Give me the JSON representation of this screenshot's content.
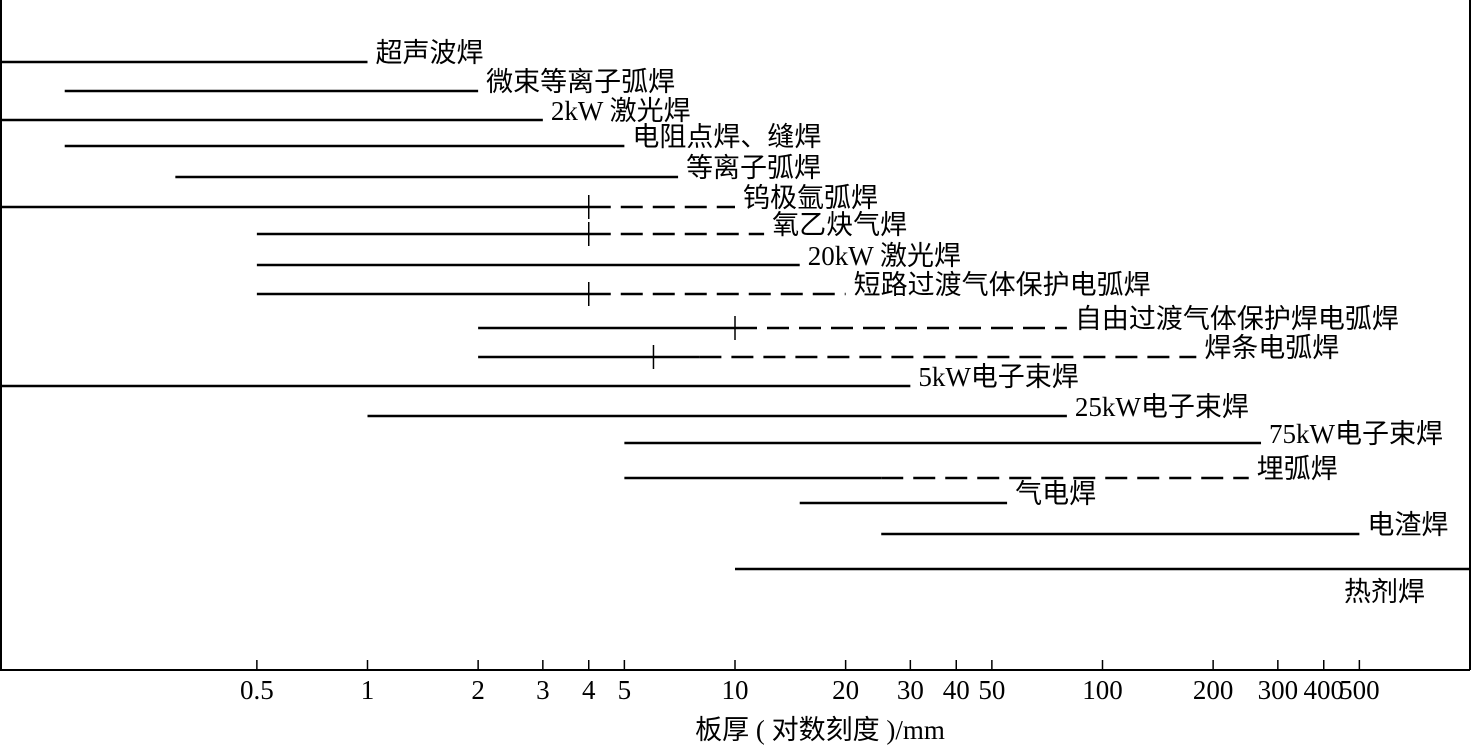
{
  "chart_data": {
    "type": "range",
    "x_label": "板厚 ( 对数刻度 )/mm",
    "xscale": "log",
    "xlim": [
      0.1,
      1000
    ],
    "xticks": [
      0.5,
      1,
      2,
      3,
      4,
      5,
      10,
      20,
      30,
      40,
      50,
      100,
      200,
      300,
      400,
      500
    ],
    "color": "#000000",
    "series": [
      {
        "name": "超声波焊",
        "start": 0.1,
        "end": 1
      },
      {
        "name": "微束等离子弧焊",
        "start": 0.15,
        "end": 2
      },
      {
        "name": "2kW 激光焊",
        "start": 0.1,
        "end": 3
      },
      {
        "name": "电阻点焊、缝焊",
        "start": 0.15,
        "end": 5
      },
      {
        "name": "等离子弧焊",
        "start": 0.3,
        "end": 7
      },
      {
        "name": "钨极氩弧焊",
        "start": 0.1,
        "end": 4,
        "dashed_end": 10,
        "tick": 4
      },
      {
        "name": "氧乙炔气焊",
        "start": 0.5,
        "end": 4,
        "dashed_end": 12,
        "tick": 4
      },
      {
        "name": "20kW 激光焊",
        "start": 0.5,
        "end": 15
      },
      {
        "name": "短路过渡气体保护电弧焊",
        "start": 0.5,
        "end": 4,
        "dashed_end": 20,
        "tick": 4
      },
      {
        "name": "自由过渡气体保护焊电弧焊",
        "start": 2,
        "end": 10,
        "dashed_end": 80,
        "tick": 10
      },
      {
        "name": "焊条电弧焊",
        "start": 2,
        "end": 8,
        "dashed_end": 180,
        "tick": 6
      },
      {
        "name": "5kW电子束焊",
        "start": 0.1,
        "end": 30
      },
      {
        "name": "25kW电子束焊",
        "start": 1,
        "end": 80
      },
      {
        "name": "75kW电子束焊",
        "start": 5,
        "end": 270
      },
      {
        "name": "埋弧焊",
        "start": 5,
        "end": 25,
        "dashed_end": 250
      },
      {
        "name": "气电焊",
        "start": 15,
        "end": 55
      },
      {
        "name": "电渣焊",
        "start": 25,
        "end": 500
      },
      {
        "name": "热剂焊",
        "start": 10,
        "end": 1000
      }
    ]
  }
}
